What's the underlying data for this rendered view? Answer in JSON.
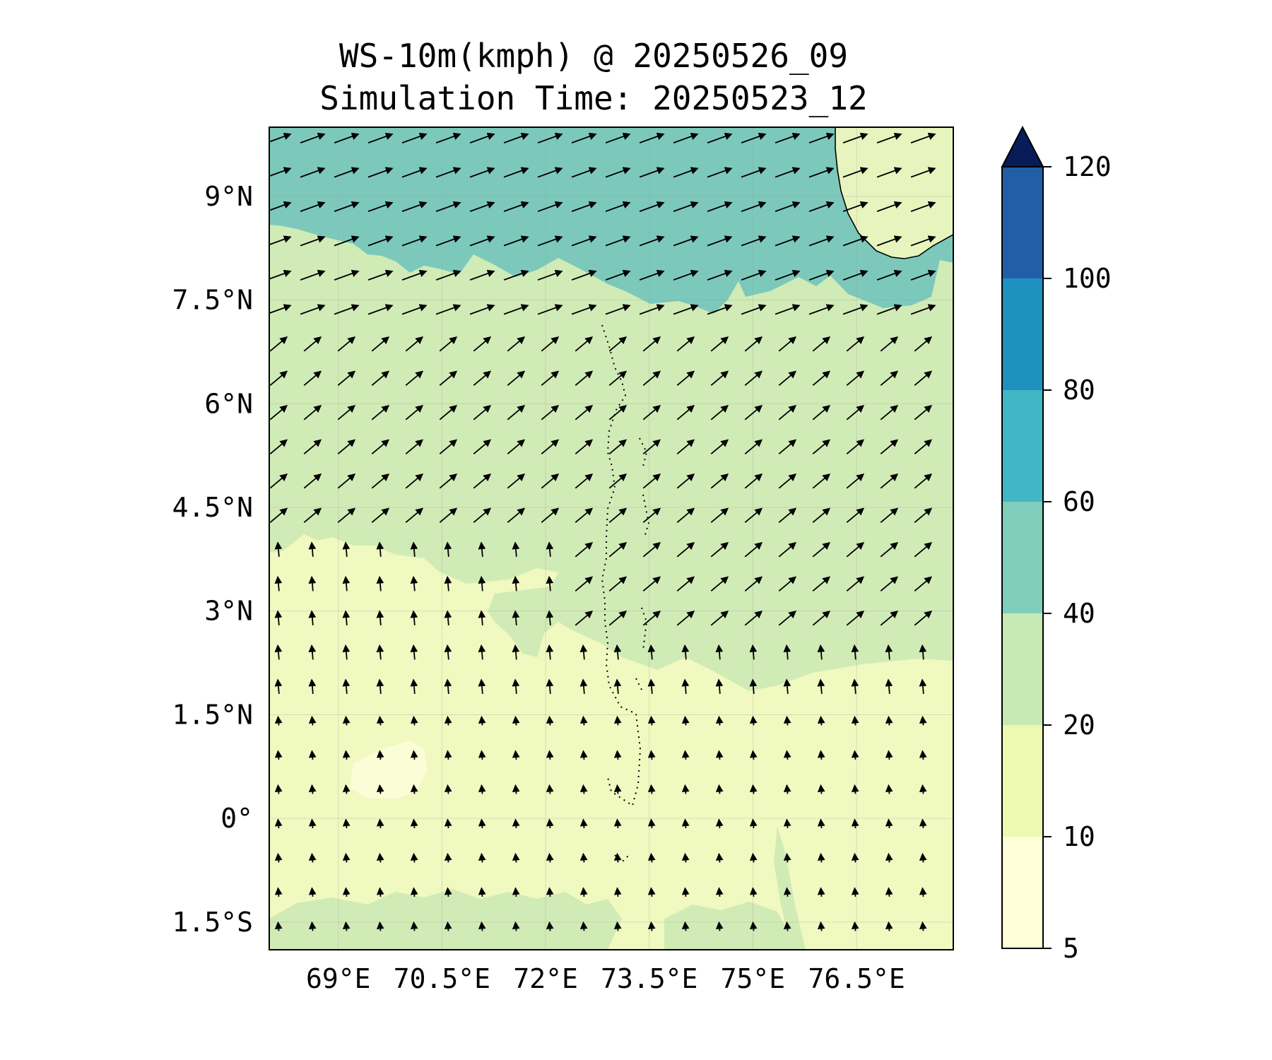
{
  "figure": {
    "title_line1": "WS-10m(kmph) @ 20250526_09",
    "title_line2": "Simulation Time: 20250523_12"
  },
  "map": {
    "lat_labels": [
      "9°N",
      "7.5°N",
      "6°N",
      "4.5°N",
      "3°N",
      "1.5°N",
      "0°",
      "1.5°S"
    ],
    "lon_labels": [
      "69°E",
      "70.5°E",
      "72°E",
      "73.5°E",
      "75°E",
      "76.5°E"
    ],
    "lat_values": [
      9,
      7.5,
      6,
      4.5,
      3,
      1.5,
      0,
      -1.5
    ],
    "lon_values": [
      69,
      70.5,
      72,
      73.5,
      75,
      76.5
    ],
    "lon_range": [
      68.0,
      77.9
    ],
    "lat_range": [
      -1.9,
      10.0
    ],
    "wind_zones": [
      {
        "name": "north",
        "angle_deg": 20,
        "scale": 1.0
      },
      {
        "name": "central",
        "angle_deg": 40,
        "scale": 0.85
      },
      {
        "name": "south",
        "angle_deg": 95,
        "scale": 0.55
      }
    ]
  },
  "colorbar": {
    "levels": [
      5,
      10,
      20,
      40,
      60,
      80,
      100,
      120
    ],
    "tick_labels": [
      "5",
      "10",
      "20",
      "40",
      "60",
      "80",
      "100",
      "120"
    ],
    "colors": [
      "#ffffd9",
      "#edf8b1",
      "#c7e9b4",
      "#7fcdbb",
      "#41b6c4",
      "#1d91c0",
      "#225ea8",
      "#253494"
    ],
    "extend_color": "#081d58",
    "unit": "kmph"
  },
  "field_colors": {
    "band_40_60": "#7cc9bc",
    "band_20_40": "#d1ebb6",
    "band_10_20": "#f0f9c0",
    "band_5_10": "#fbfdd6",
    "land": "#e8f4be"
  }
}
